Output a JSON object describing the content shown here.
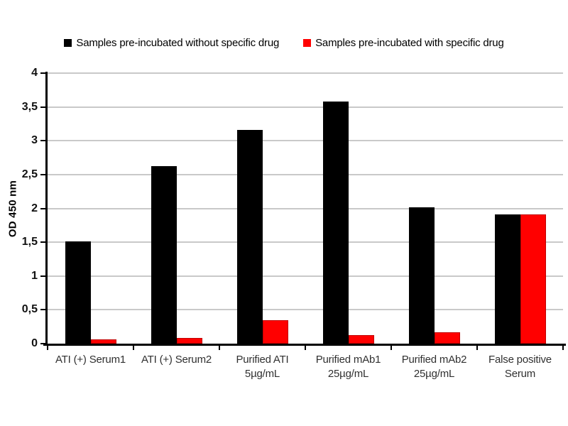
{
  "chart_data": {
    "type": "bar",
    "title": "",
    "xlabel": "",
    "ylabel": "OD 450 nm",
    "ylim": [
      0,
      4
    ],
    "grid": true,
    "legend_position": "top",
    "decimal_separator": ",",
    "categories": [
      "ATI (+) Serum1",
      "ATI (+) Serum2",
      "Purified ATI\n5µg/mL",
      "Purified mAb1\n25µg/mL",
      "Purified mAb2\n25µg/mL",
      "False positive\nSerum"
    ],
    "series": [
      {
        "name": "Samples pre-incubated without specific drug",
        "color": "#000000",
        "values": [
          1.51,
          2.63,
          3.16,
          3.58,
          2.02,
          1.91
        ]
      },
      {
        "name": "Samples pre-incubated with specific drug",
        "color": "#ff0000",
        "values": [
          0.06,
          0.08,
          0.35,
          0.13,
          0.17,
          1.91
        ]
      }
    ],
    "yticks": [
      {
        "v": 0,
        "label": "0"
      },
      {
        "v": 0.5,
        "label": "0,5"
      },
      {
        "v": 1,
        "label": "1"
      },
      {
        "v": 1.5,
        "label": "1,5"
      },
      {
        "v": 2,
        "label": "2"
      },
      {
        "v": 2.5,
        "label": "2,5"
      },
      {
        "v": 3,
        "label": "3"
      },
      {
        "v": 3.5,
        "label": "3,5"
      },
      {
        "v": 4,
        "label": "4"
      }
    ]
  }
}
